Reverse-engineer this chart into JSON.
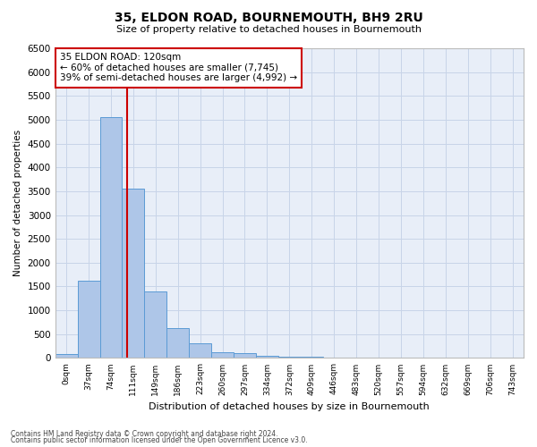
{
  "title": "35, ELDON ROAD, BOURNEMOUTH, BH9 2RU",
  "subtitle": "Size of property relative to detached houses in Bournemouth",
  "xlabel": "Distribution of detached houses by size in Bournemouth",
  "ylabel": "Number of detached properties",
  "annotation_title": "35 ELDON ROAD: 120sqm",
  "annotation_line1": "← 60% of detached houses are smaller (7,745)",
  "annotation_line2": "39% of semi-detached houses are larger (4,992) →",
  "footer1": "Contains HM Land Registry data © Crown copyright and database right 2024.",
  "footer2": "Contains public sector information licensed under the Open Government Licence v3.0.",
  "bin_labels": [
    "0sqm",
    "37sqm",
    "74sqm",
    "111sqm",
    "149sqm",
    "186sqm",
    "223sqm",
    "260sqm",
    "297sqm",
    "334sqm",
    "372sqm",
    "409sqm",
    "446sqm",
    "483sqm",
    "520sqm",
    "557sqm",
    "594sqm",
    "632sqm",
    "669sqm",
    "706sqm",
    "743sqm"
  ],
  "bar_values": [
    75,
    1625,
    5050,
    3560,
    1400,
    620,
    300,
    130,
    100,
    50,
    30,
    20,
    15,
    10,
    8,
    5,
    5,
    4,
    3,
    3,
    2
  ],
  "bar_color": "#aec6e8",
  "bar_edge_color": "#5b9bd5",
  "ylim": [
    0,
    6500
  ],
  "yticks": [
    0,
    500,
    1000,
    1500,
    2000,
    2500,
    3000,
    3500,
    4000,
    4500,
    5000,
    5500,
    6000,
    6500
  ],
  "annotation_box_color": "#ffffff",
  "annotation_box_edge": "#cc0000",
  "grid_color": "#c8d4e8",
  "background_color": "#e8eef8"
}
